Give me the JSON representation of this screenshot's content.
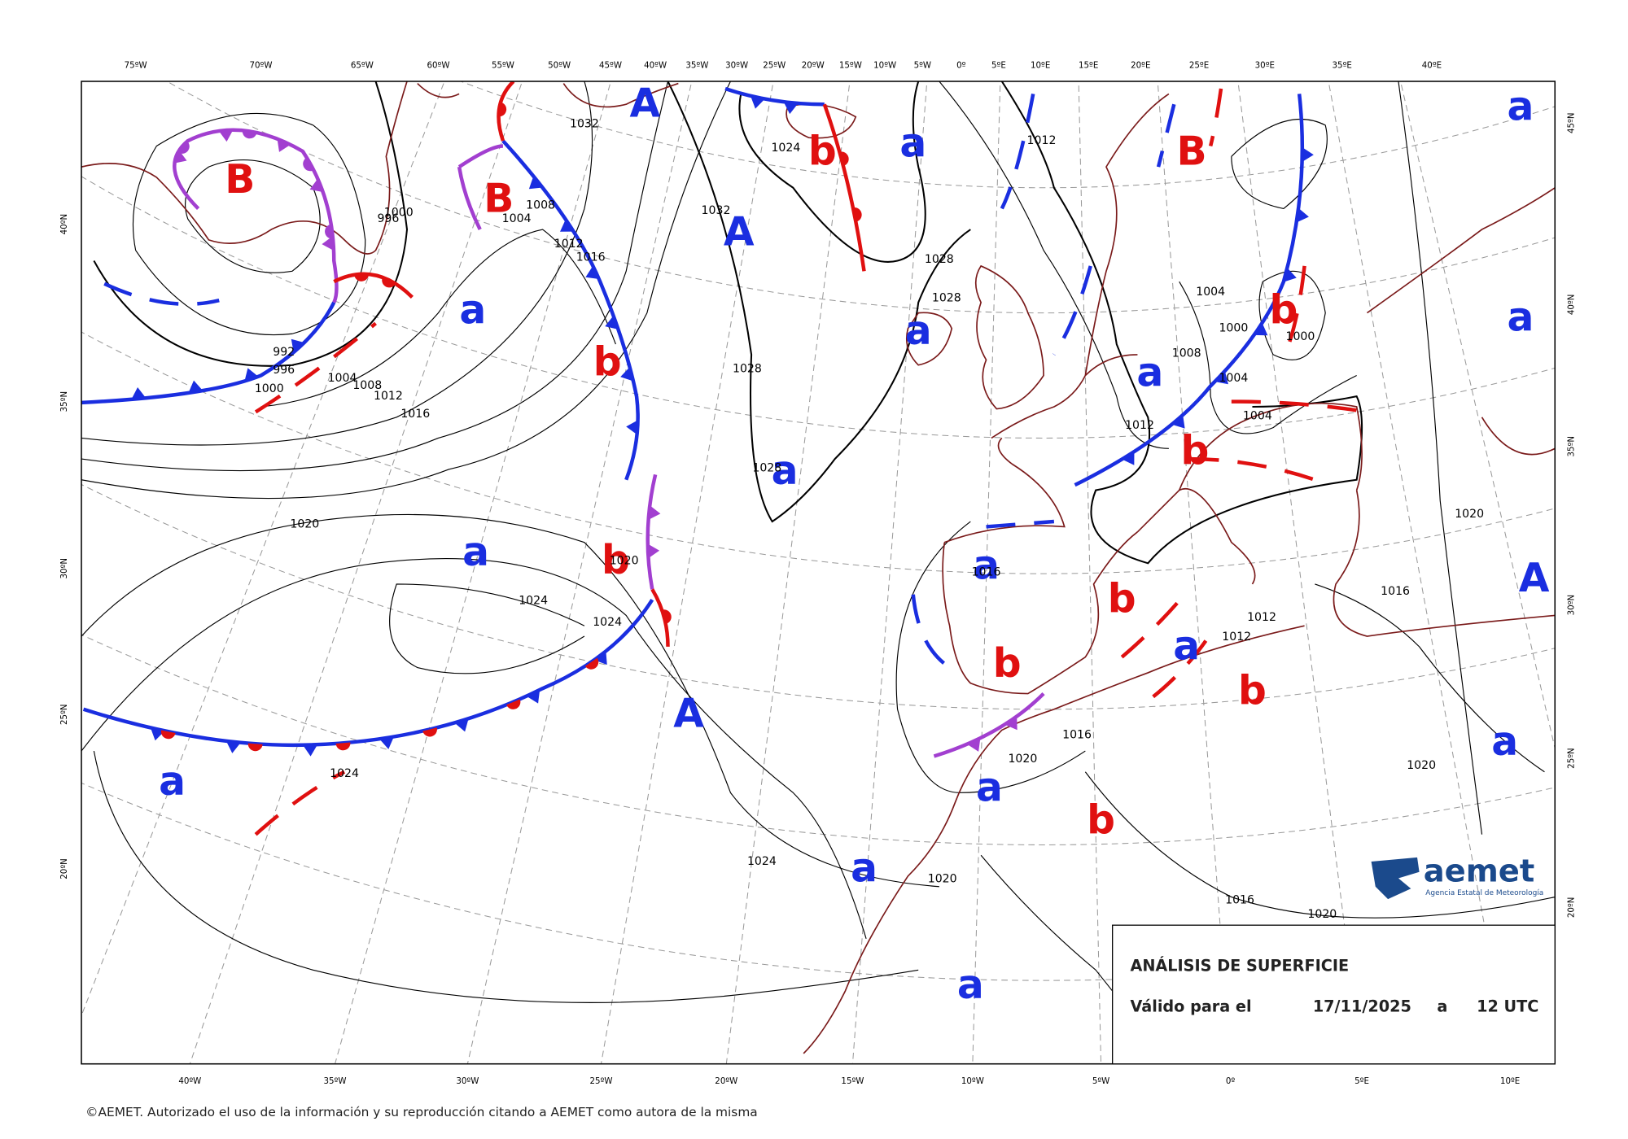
{
  "top_longitudes": [
    "75ºW",
    "70ºW",
    "65ºW",
    "60ºW",
    "55ºW",
    "50ºW",
    "45ºW",
    "40ºW",
    "35ºW",
    "30ºW",
    "25ºW",
    "20ºW",
    "15ºW",
    "10ºW",
    "5ºW",
    "0º",
    "5ºE",
    "10ºE",
    "15ºE",
    "20ºE",
    "25ºE",
    "30ºE",
    "35ºE",
    "40ºE"
  ],
  "bottom_longitudes": [
    "40ºW",
    "35ºW",
    "30ºW",
    "25ºW",
    "20ºW",
    "15ºW",
    "10ºW",
    "5ºW",
    "0º",
    "5ºE",
    "10ºE"
  ],
  "left_latitudes": [
    "40ºN",
    "35ºN",
    "30ºN",
    "25ºN",
    "20ºN"
  ],
  "right_latitudes": [
    "45ºN",
    "40ºN",
    "35ºN",
    "30ºN",
    "25ºN",
    "20ºN"
  ],
  "pressure_centers": [
    "A",
    "A",
    "A",
    "A",
    "B",
    "B",
    "B",
    "a",
    "a",
    "a",
    "a",
    "a",
    "a",
    "a",
    "a",
    "a",
    "a",
    "a",
    "a",
    "a",
    "a",
    "a",
    "b",
    "b",
    "b",
    "b",
    "b",
    "b",
    "b",
    "b",
    "b"
  ],
  "isobar_labels": [
    "1032",
    "1024",
    "1032",
    "1028",
    "1028",
    "1012",
    "1016",
    "1008",
    "1004",
    "1000",
    "996",
    "992",
    "996",
    "1000",
    "1004",
    "1008",
    "1012",
    "1016",
    "1020",
    "1024",
    "1020",
    "1024",
    "1024",
    "1024",
    "1020",
    "1028",
    "1028",
    "1012",
    "1004",
    "1000",
    "1008",
    "1004",
    "1004",
    "1012",
    "1000",
    "1016",
    "1016",
    "1020",
    "1012",
    "1012",
    "1016",
    "1020",
    "1020",
    "1016",
    "1020"
  ],
  "info_box": {
    "title": "ANÁLISIS DE SUPERFICIE",
    "valid_label": "Válido para el",
    "date": "17/11/2025",
    "connector": "a",
    "time": "12 UTC"
  },
  "logo": {
    "name": "aemet",
    "subtitle": "Agencia Estatal de Meteorología"
  },
  "footer": "©AEMET. Autorizado el uso de la información y su reproducción citando a AEMET como autora de la misma"
}
